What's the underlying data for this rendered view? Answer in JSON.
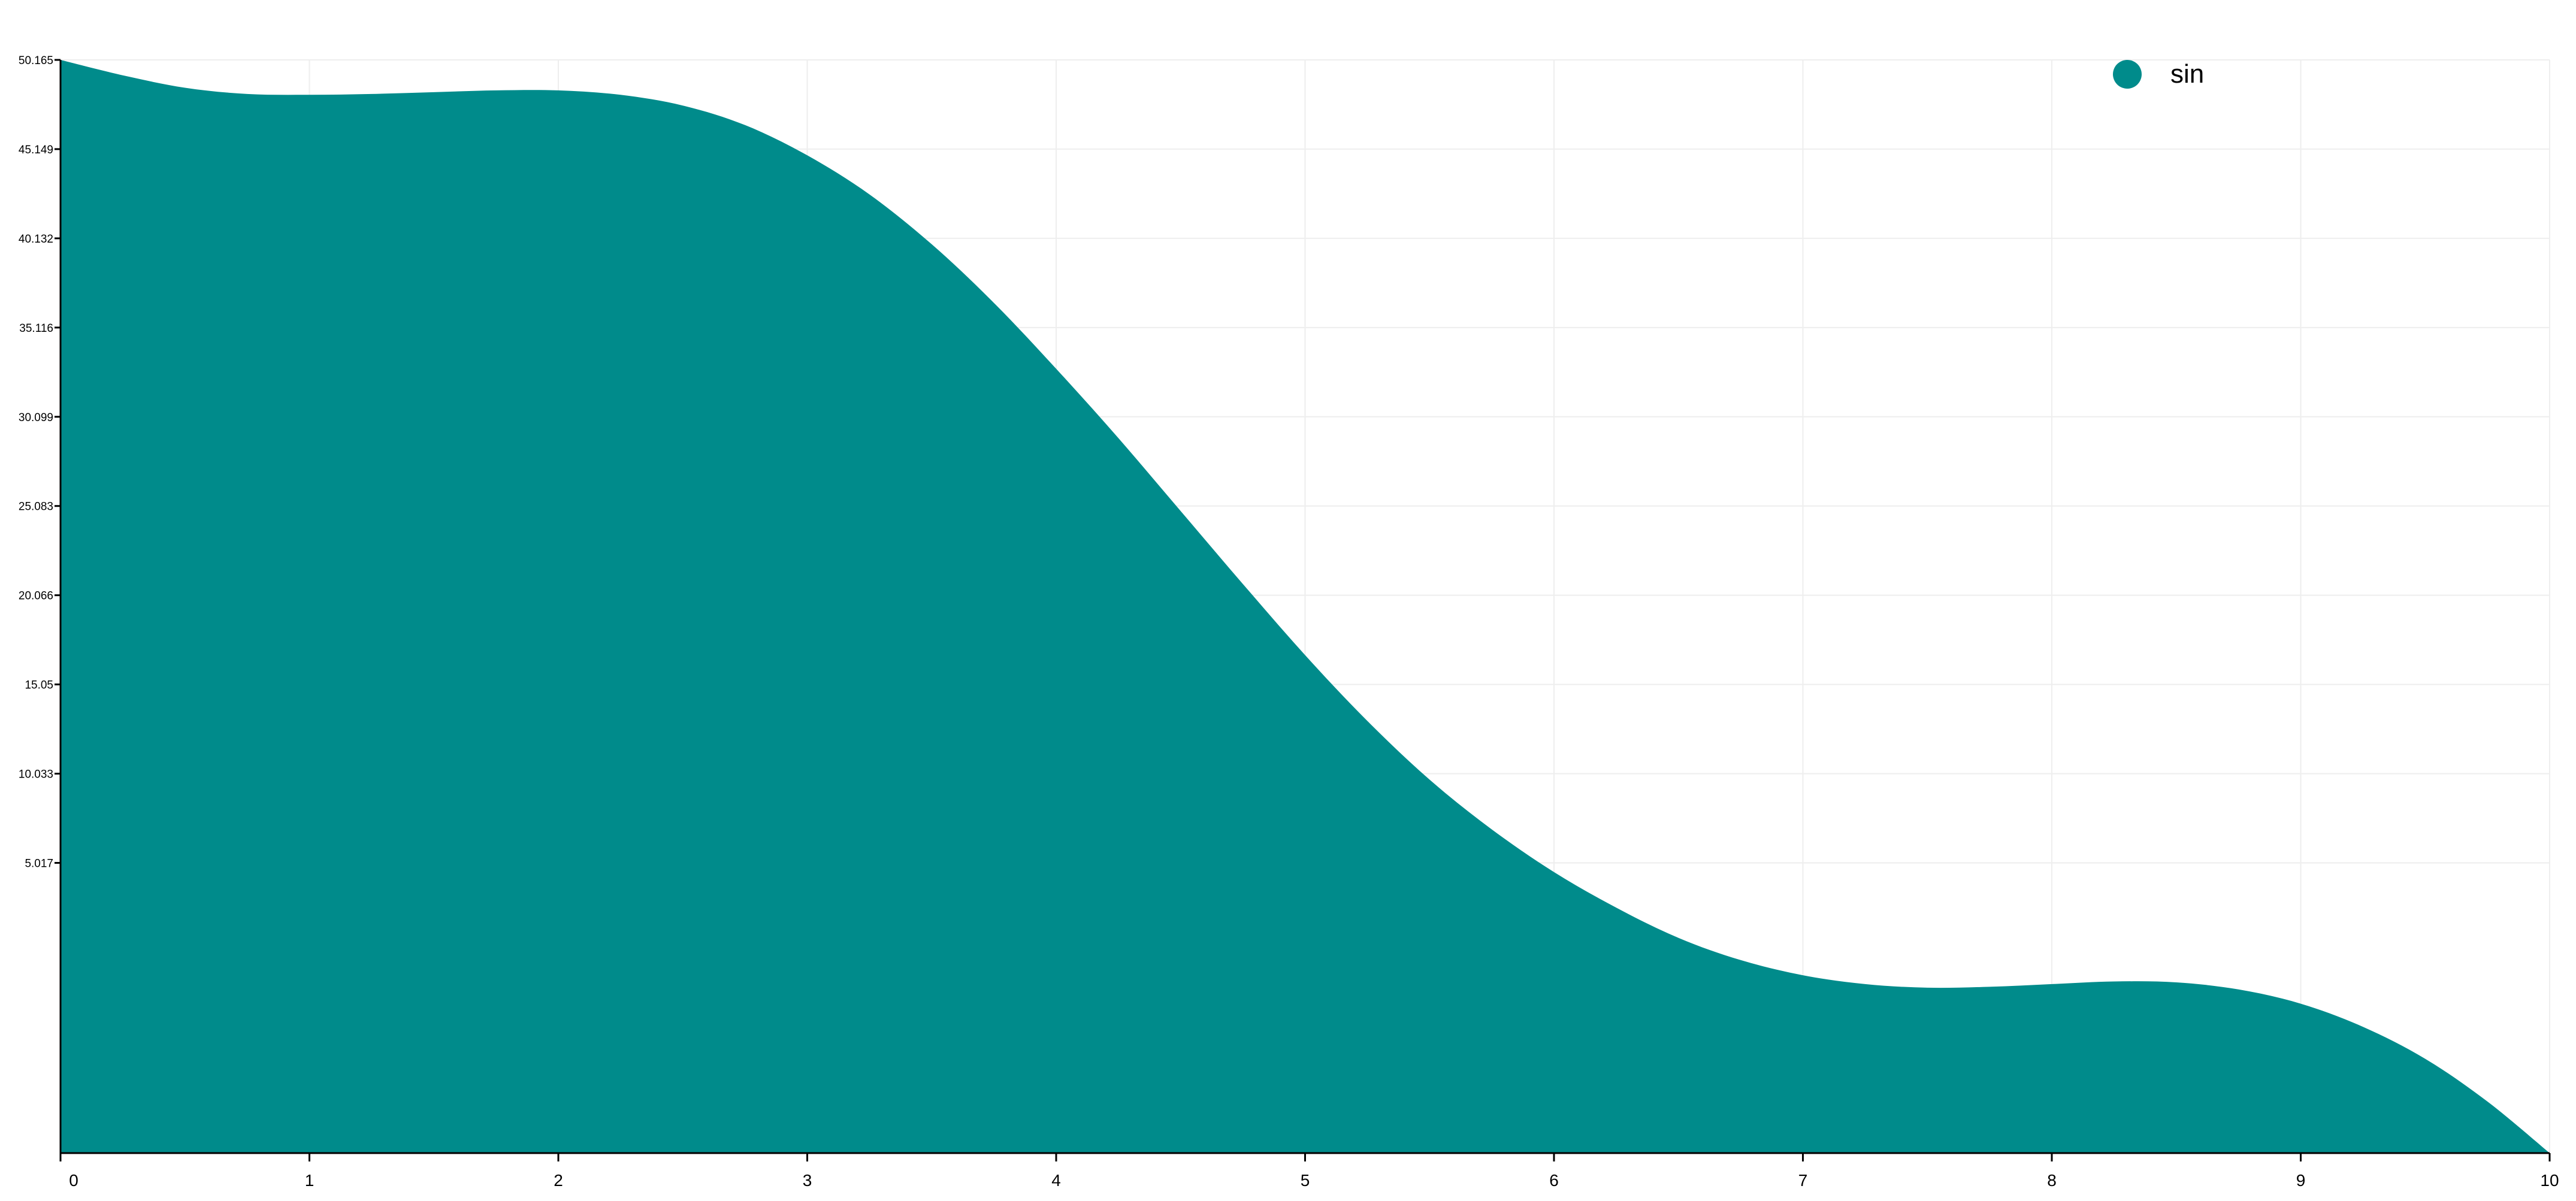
{
  "chart_data": {
    "type": "area",
    "series": [
      {
        "name": "sin",
        "color": "#008B8B",
        "x": [
          0,
          0.25,
          0.5,
          0.75,
          1,
          1.25,
          1.5,
          1.75,
          2,
          2.25,
          2.5,
          2.75,
          3,
          3.25,
          3.5,
          3.75,
          4,
          4.25,
          4.5,
          4.75,
          5,
          5.25,
          5.5,
          5.75,
          6,
          6.25,
          6.5,
          6.75,
          7,
          7.25,
          7.5,
          7.75,
          8,
          8.25,
          8.5,
          8.75,
          9,
          9.25,
          9.5,
          9.75,
          10
        ],
        "y": [
          50.165,
          49.3,
          48.6,
          48.25,
          48.2,
          48.25,
          48.35,
          48.45,
          48.45,
          48.2,
          47.6,
          46.5,
          44.8,
          42.6,
          39.8,
          36.5,
          32.8,
          28.9,
          24.8,
          20.7,
          16.7,
          13.0,
          9.7,
          6.9,
          4.5,
          2.5,
          0.8,
          -0.45,
          -1.3,
          -1.8,
          -2.0,
          -1.95,
          -1.8,
          -1.65,
          -1.7,
          -2.1,
          -2.9,
          -4.2,
          -6.0,
          -8.4,
          -11.3
        ]
      }
    ],
    "x_ticks": [
      "0",
      "1",
      "2",
      "3",
      "4",
      "5",
      "6",
      "7",
      "8",
      "9",
      "10"
    ],
    "y_ticks": [
      "50.165",
      "45.149",
      "40.132",
      "35.116",
      "30.099",
      "25.083",
      "20.066",
      "15.05",
      "10.033",
      "5.017"
    ],
    "xlim": [
      0,
      10
    ],
    "ylim": [
      -11.3,
      50.165
    ],
    "grid": true,
    "legend_position": "top-right",
    "xlabel": "",
    "ylabel": "",
    "title": ""
  }
}
